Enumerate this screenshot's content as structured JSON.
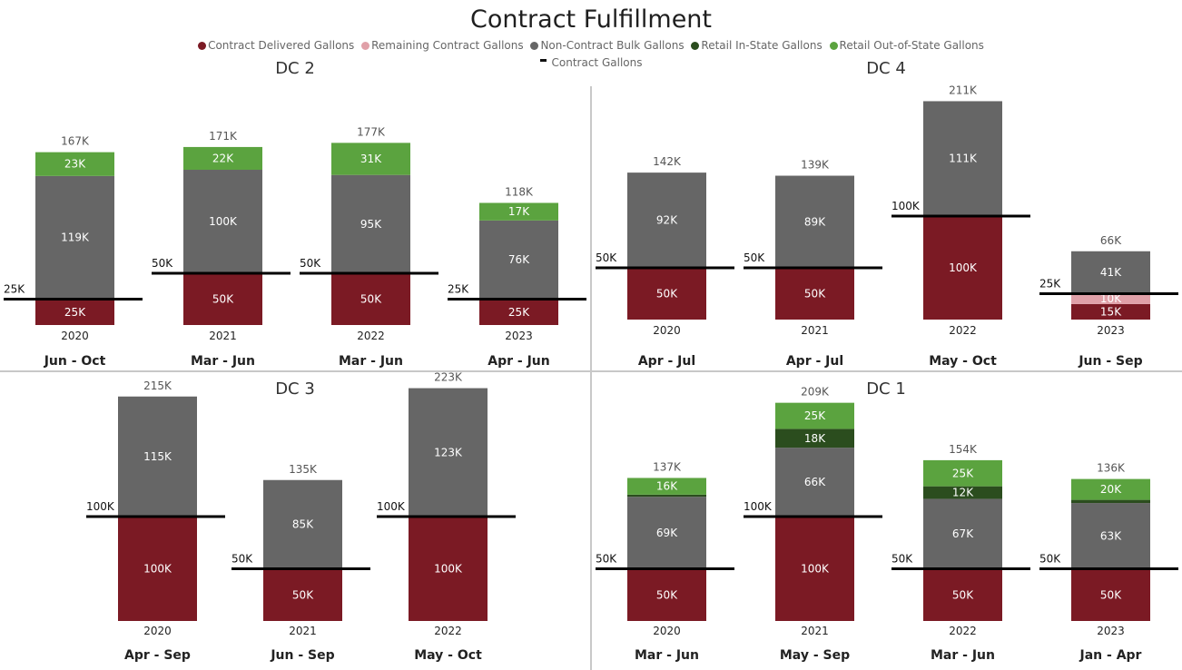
{
  "title": "Contract Fulfillment",
  "legend": [
    {
      "label": "Contract Delivered Gallons",
      "color": "#7B1A24"
    },
    {
      "label": "Remaining Contract Gallons",
      "color": "#E0A0A8"
    },
    {
      "label": "Non-Contract Bulk Gallons",
      "color": "#666666"
    },
    {
      "label": "Retail In-State Gallons",
      "color": "#2B4D1E"
    },
    {
      "label": "Retail Out-of-State Gallons",
      "color": "#5BA33F"
    }
  ],
  "legend_line_label": "Contract Gallons",
  "chart_data": [
    {
      "type": "bar",
      "stacked": true,
      "title": "DC 2",
      "ylim": [
        0,
        230
      ],
      "categories": [
        {
          "year": "2020",
          "period": "Jun - Oct"
        },
        {
          "year": "2021",
          "period": "Mar - Jun"
        },
        {
          "year": "2022",
          "period": "Mar - Jun"
        },
        {
          "year": "2023",
          "period": "Apr - Jun"
        }
      ],
      "series": [
        {
          "name": "Contract Delivered Gallons",
          "values": [
            25,
            50,
            50,
            25
          ]
        },
        {
          "name": "Remaining Contract Gallons",
          "values": [
            0,
            0,
            0,
            0
          ]
        },
        {
          "name": "Non-Contract Bulk Gallons",
          "values": [
            119,
            100,
            95,
            76
          ]
        },
        {
          "name": "Retail In-State Gallons",
          "values": [
            0,
            0,
            0,
            0
          ]
        },
        {
          "name": "Retail Out-of-State Gallons",
          "values": [
            23,
            22,
            31,
            17
          ]
        }
      ],
      "totals": [
        167,
        171,
        177,
        118
      ],
      "contract": [
        25,
        50,
        50,
        25
      ]
    },
    {
      "type": "bar",
      "stacked": true,
      "title": "DC 4",
      "ylim": [
        0,
        230
      ],
      "categories": [
        {
          "year": "2020",
          "period": "Apr - Jul"
        },
        {
          "year": "2021",
          "period": "Apr - Jul"
        },
        {
          "year": "2022",
          "period": "May - Oct"
        },
        {
          "year": "2023",
          "period": "Jun - Sep"
        }
      ],
      "series": [
        {
          "name": "Contract Delivered Gallons",
          "values": [
            50,
            50,
            100,
            15
          ]
        },
        {
          "name": "Remaining Contract Gallons",
          "values": [
            0,
            0,
            0,
            10
          ]
        },
        {
          "name": "Non-Contract Bulk Gallons",
          "values": [
            92,
            89,
            111,
            41
          ]
        },
        {
          "name": "Retail In-State Gallons",
          "values": [
            0,
            0,
            0,
            0
          ]
        },
        {
          "name": "Retail Out-of-State Gallons",
          "values": [
            0,
            0,
            0,
            0
          ]
        }
      ],
      "totals": [
        142,
        139,
        211,
        66
      ],
      "contract": [
        50,
        50,
        100,
        25
      ]
    },
    {
      "type": "bar",
      "stacked": true,
      "title": "DC 3",
      "ylim": [
        0,
        250
      ],
      "categories": [
        {
          "year": "2020",
          "period": "Apr - Sep"
        },
        {
          "year": "2021",
          "period": "Jun - Sep"
        },
        {
          "year": "2022",
          "period": "May - Oct"
        }
      ],
      "series": [
        {
          "name": "Contract Delivered Gallons",
          "values": [
            100,
            50,
            100
          ]
        },
        {
          "name": "Remaining Contract Gallons",
          "values": [
            0,
            0,
            0
          ]
        },
        {
          "name": "Non-Contract Bulk Gallons",
          "values": [
            115,
            85,
            123
          ]
        },
        {
          "name": "Retail In-State Gallons",
          "values": [
            0,
            0,
            0
          ]
        },
        {
          "name": "Retail Out-of-State Gallons",
          "values": [
            0,
            0,
            0
          ]
        }
      ],
      "totals": [
        215,
        135,
        223
      ],
      "contract": [
        100,
        50,
        100
      ]
    },
    {
      "type": "bar",
      "stacked": true,
      "title": "DC 1",
      "ylim": [
        0,
        240
      ],
      "categories": [
        {
          "year": "2020",
          "period": "Mar - Jun"
        },
        {
          "year": "2021",
          "period": "May - Sep"
        },
        {
          "year": "2022",
          "period": "Mar - Jun"
        },
        {
          "year": "2023",
          "period": "Jan - Apr"
        }
      ],
      "series": [
        {
          "name": "Contract Delivered Gallons",
          "values": [
            50,
            100,
            50,
            50
          ]
        },
        {
          "name": "Remaining Contract Gallons",
          "values": [
            0,
            0,
            0,
            0
          ]
        },
        {
          "name": "Non-Contract Bulk Gallons",
          "values": [
            69,
            66,
            67,
            63
          ]
        },
        {
          "name": "Retail In-State Gallons",
          "values": [
            2,
            18,
            12,
            3
          ]
        },
        {
          "name": "Retail Out-of-State Gallons",
          "values": [
            16,
            25,
            25,
            20
          ]
        }
      ],
      "totals": [
        137,
        209,
        154,
        136
      ],
      "contract": [
        50,
        100,
        50,
        50
      ]
    }
  ]
}
